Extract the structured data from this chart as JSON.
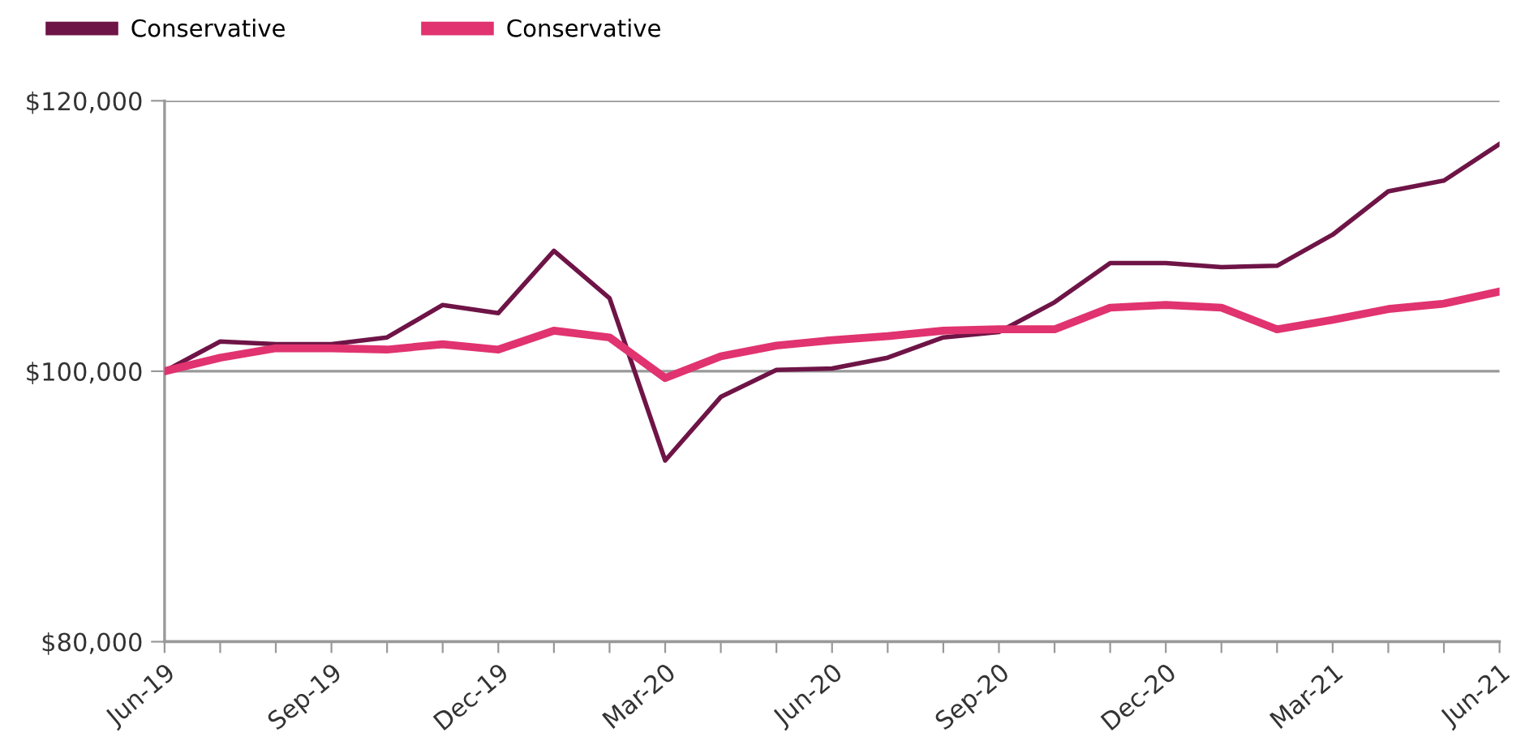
{
  "chart_data": {
    "type": "line",
    "categories": [
      "Jun-19",
      null,
      null,
      "Sep-19",
      null,
      null,
      "Dec-19",
      null,
      null,
      "Mar-20",
      null,
      null,
      "Jun-20",
      null,
      null,
      "Sep-20",
      null,
      null,
      "Dec-20",
      null,
      null,
      "Mar-21",
      null,
      null,
      "Jun-21"
    ],
    "series": [
      {
        "name": "Conservative",
        "color": "#6e1446",
        "values": [
          100000,
          102200,
          102000,
          102000,
          102500,
          104900,
          104300,
          108900,
          105400,
          93400,
          98100,
          100100,
          100200,
          101000,
          102500,
          102900,
          105100,
          108000,
          108000,
          107700,
          107800,
          110100,
          113300,
          114100,
          116800
        ]
      },
      {
        "name": "Conservative",
        "color": "#e0336f",
        "values": [
          100000,
          101000,
          101700,
          101700,
          101600,
          102000,
          101600,
          103000,
          102500,
          99500,
          101100,
          101900,
          102300,
          102600,
          103000,
          103100,
          103100,
          104700,
          104900,
          104700,
          103100,
          103800,
          104600,
          105000,
          105900
        ]
      }
    ],
    "ylim": [
      80000,
      120000
    ],
    "yticks": [
      {
        "value": 80000,
        "label": "$80,000"
      },
      {
        "value": 100000,
        "label": "$100,000"
      },
      {
        "value": 120000,
        "label": "$120,000"
      }
    ],
    "grid": "y",
    "legend": "top left",
    "marker": "none",
    "line_style": "solid"
  }
}
